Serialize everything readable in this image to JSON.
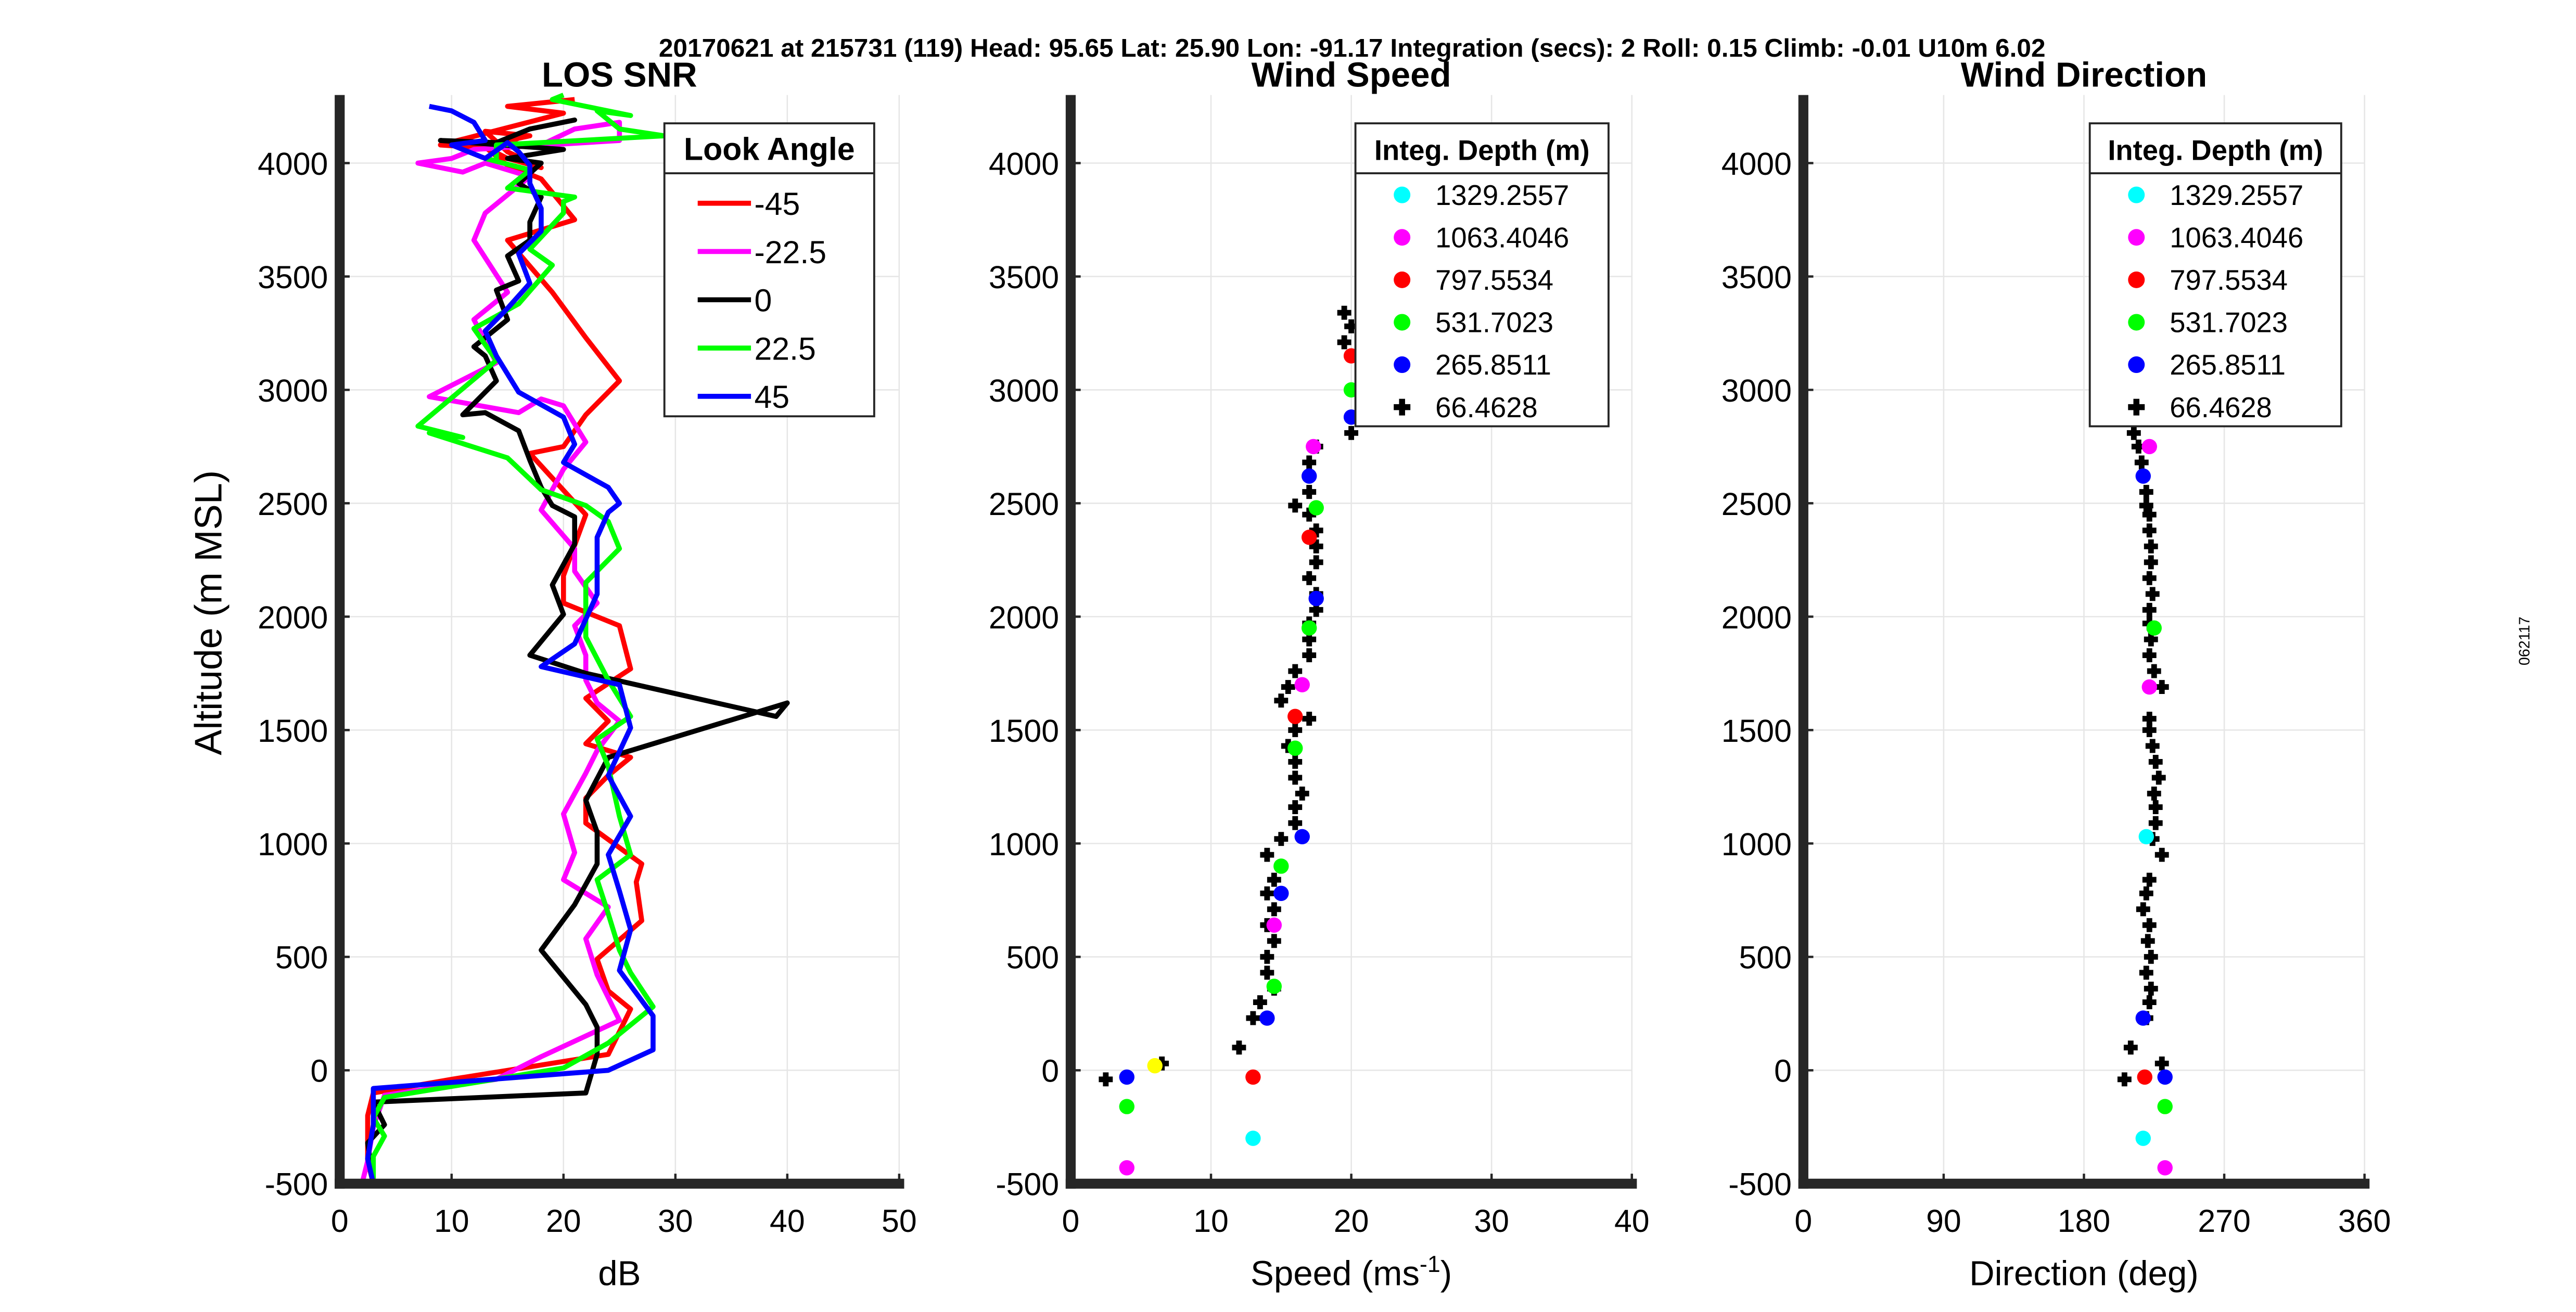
{
  "header": "20170621 at 215731 (119)  Head: 95.65  Lat: 25.90  Lon: -91.17  Integration (secs): 2  Roll: 0.15  Climb: -0.01  U10m 6.02",
  "side_label": "062117",
  "colors": {
    "red": "#ff0000",
    "magenta": "#ff00ff",
    "black": "#000000",
    "green": "#00ff00",
    "blue": "#0000ff",
    "cyan": "#00ffff",
    "yellow": "#ffff00",
    "grid": "#e6e6e6",
    "axis": "#262626"
  },
  "chart_data": [
    {
      "type": "line",
      "title": "LOS SNR",
      "xlabel": "dB",
      "ylabel": "Altitude (m MSL)",
      "xlim": [
        0,
        50
      ],
      "ylim": [
        -500,
        4300
      ],
      "xticks": [
        "0",
        "10",
        "20",
        "30",
        "40",
        "50"
      ],
      "yticks": [
        "-500",
        "0",
        "500",
        "1000",
        "1500",
        "2000",
        "2500",
        "3000",
        "3500",
        "4000"
      ],
      "legend_title": "Look Angle",
      "legend_position": "top-right",
      "grid": true,
      "series": [
        {
          "name": "-45",
          "color": "#ff0000",
          "x": [
            3,
            2.5,
            2.5,
            3,
            10,
            24,
            26,
            24,
            23,
            27,
            26.5,
            27,
            22,
            22,
            24,
            26,
            22,
            24,
            22,
            26,
            25,
            20,
            20,
            22,
            17,
            20,
            22,
            25,
            22,
            19,
            15,
            21,
            18,
            15,
            13,
            15,
            18,
            15,
            13,
            17,
            16,
            15,
            12,
            9,
            20,
            15,
            21
          ],
          "y": [
            -500,
            -400,
            -200,
            -100,
            -40,
            70,
            270,
            350,
            490,
            660,
            830,
            910,
            1090,
            1200,
            1300,
            1380,
            1440,
            1540,
            1640,
            1770,
            1960,
            2060,
            2180,
            2450,
            2720,
            2750,
            2890,
            3040,
            3230,
            3430,
            3660,
            3750,
            3930,
            3990,
            4070,
            4020,
            3980,
            4050,
            4140,
            4120,
            4110,
            4090,
            4070,
            4080,
            4220,
            4250,
            4280
          ]
        },
        {
          "name": "-22.5",
          "color": "#ff00ff",
          "x": [
            2,
            2.5,
            3,
            4,
            14,
            18,
            25,
            23,
            22,
            24,
            20,
            21,
            20,
            22,
            23,
            25,
            23,
            22,
            22,
            21,
            23,
            21,
            21,
            18,
            20,
            22,
            21,
            20,
            18,
            16,
            8,
            14,
            12,
            15,
            12,
            13,
            17,
            13,
            11,
            7,
            10,
            12,
            25,
            25,
            21,
            18
          ],
          "y": [
            -500,
            -400,
            -250,
            -110,
            -40,
            60,
            220,
            420,
            580,
            720,
            840,
            960,
            1130,
            1310,
            1410,
            1540,
            1620,
            1720,
            1830,
            1960,
            2060,
            2200,
            2300,
            2470,
            2650,
            2770,
            2850,
            2930,
            2960,
            2900,
            2970,
            3120,
            3310,
            3430,
            3660,
            3780,
            3940,
            4000,
            3960,
            4000,
            4020,
            4060,
            4100,
            4180,
            4150,
            4080
          ]
        },
        {
          "name": "0",
          "color": "#000000",
          "x": [
            3,
            2.5,
            4,
            3,
            22,
            23,
            23,
            22,
            18,
            21,
            23,
            23,
            22,
            24,
            40,
            39,
            22,
            17,
            20,
            19,
            21,
            21,
            19,
            18,
            17,
            16,
            13,
            11,
            14,
            13,
            12,
            15,
            14,
            16,
            15,
            17,
            17,
            18,
            16,
            18,
            15,
            20,
            9,
            14,
            17,
            21,
            19
          ],
          "y": [
            -500,
            -320,
            -240,
            -140,
            -100,
            70,
            190,
            290,
            530,
            730,
            910,
            1050,
            1190,
            1380,
            1620,
            1560,
            1750,
            1830,
            2010,
            2140,
            2320,
            2440,
            2490,
            2570,
            2690,
            2820,
            2900,
            2890,
            3040,
            3150,
            3190,
            3310,
            3440,
            3480,
            3590,
            3660,
            3740,
            3850,
            3910,
            4000,
            4020,
            4060,
            4100,
            4090,
            4150,
            4190,
            4170
          ]
        },
        {
          "name": "22.5",
          "color": "#00ff00",
          "x": [
            3,
            3,
            4,
            3,
            4,
            20,
            24,
            28,
            26,
            25,
            24,
            23,
            26,
            25,
            24,
            23,
            26,
            24,
            22,
            22,
            25,
            24,
            22,
            18,
            15,
            8,
            11,
            7,
            14,
            12,
            16,
            19,
            17,
            20,
            20,
            21,
            15,
            17,
            13,
            14,
            14,
            18,
            29,
            25,
            23,
            26,
            22,
            19,
            20
          ],
          "y": [
            -500,
            -380,
            -290,
            -210,
            -120,
            10,
            120,
            280,
            430,
            530,
            690,
            840,
            950,
            1120,
            1340,
            1460,
            1560,
            1720,
            1910,
            2150,
            2300,
            2420,
            2490,
            2560,
            2700,
            2810,
            2790,
            2840,
            3130,
            3270,
            3380,
            3550,
            3620,
            3780,
            3830,
            3850,
            3890,
            3970,
            4020,
            4010,
            4080,
            4090,
            4120,
            4150,
            4230,
            4210,
            4250,
            4280,
            4300
          ]
        },
        {
          "name": "45",
          "color": "#0000ff",
          "x": [
            3,
            2.5,
            3,
            3,
            3,
            24,
            28,
            28,
            25,
            26,
            25,
            24,
            26,
            24,
            26,
            25,
            18,
            21,
            23,
            23,
            23,
            24,
            25,
            24,
            20,
            21,
            20,
            16,
            14,
            13,
            15,
            17,
            16,
            18,
            18,
            17,
            17,
            16,
            15,
            13,
            13,
            10,
            13,
            12,
            10,
            8
          ],
          "y": [
            -500,
            -390,
            -240,
            -160,
            -80,
            0,
            90,
            240,
            440,
            620,
            790,
            950,
            1120,
            1300,
            1510,
            1700,
            1780,
            1880,
            2100,
            2270,
            2350,
            2460,
            2500,
            2570,
            2680,
            2760,
            2880,
            2990,
            3150,
            3260,
            3360,
            3470,
            3600,
            3700,
            3800,
            3910,
            3990,
            4050,
            4090,
            4020,
            4020,
            4080,
            4100,
            4180,
            4230,
            4250
          ]
        }
      ]
    },
    {
      "type": "scatter",
      "title": "Wind Speed",
      "xlabel": "Speed (ms",
      "xlabel_sup": "-1",
      "xlabel_tail": ")",
      "xlim": [
        0,
        40
      ],
      "ylim": [
        -500,
        4300
      ],
      "xticks": [
        "0",
        "10",
        "20",
        "30",
        "40"
      ],
      "yticks": [
        "-500",
        "0",
        "500",
        "1000",
        "1500",
        "2000",
        "2500",
        "3000",
        "3500",
        "4000"
      ],
      "legend_title": "Integ. Depth (m)",
      "legend_position": "top-right",
      "grid": true,
      "legend": [
        {
          "label": "1329.2557",
          "color": "#00ffff",
          "marker": "circle"
        },
        {
          "label": "1063.4046",
          "color": "#ff00ff",
          "marker": "circle"
        },
        {
          "label": "797.5534",
          "color": "#ff0000",
          "marker": "circle"
        },
        {
          "label": "531.7023",
          "color": "#00ff00",
          "marker": "circle"
        },
        {
          "label": "265.8511",
          "color": "#0000ff",
          "marker": "circle"
        },
        {
          "label": "66.4628",
          "color": "#000000",
          "marker": "plus"
        }
      ],
      "points": [
        {
          "x": 13,
          "y": -300,
          "c": "#00ffff"
        },
        {
          "x": 4,
          "y": -430,
          "c": "#ff00ff"
        },
        {
          "x": 13,
          "y": -30,
          "c": "#ff0000"
        },
        {
          "x": 4,
          "y": -160,
          "c": "#00ff00"
        },
        {
          "x": 4,
          "y": -30,
          "c": "#0000ff"
        },
        {
          "x": 6,
          "y": 20,
          "c": "#ffff00"
        },
        {
          "x": 14,
          "y": 230,
          "c": "#0000ff"
        },
        {
          "x": 14.5,
          "y": 370,
          "c": "#00ff00"
        },
        {
          "x": 14.5,
          "y": 640,
          "c": "#ff00ff"
        },
        {
          "x": 15,
          "y": 780,
          "c": "#0000ff"
        },
        {
          "x": 15,
          "y": 900,
          "c": "#00ff00"
        },
        {
          "x": 16.5,
          "y": 1030,
          "c": "#0000ff"
        },
        {
          "x": 16,
          "y": 1420,
          "c": "#00ff00"
        },
        {
          "x": 16,
          "y": 1560,
          "c": "#ff0000"
        },
        {
          "x": 16.5,
          "y": 1700,
          "c": "#ff00ff"
        },
        {
          "x": 17,
          "y": 1950,
          "c": "#00ff00"
        },
        {
          "x": 17.5,
          "y": 2080,
          "c": "#0000ff"
        },
        {
          "x": 17,
          "y": 2350,
          "c": "#ff0000"
        },
        {
          "x": 17.5,
          "y": 2480,
          "c": "#00ff00"
        },
        {
          "x": 17,
          "y": 2620,
          "c": "#0000ff"
        },
        {
          "x": 17.3,
          "y": 2750,
          "c": "#ff00ff"
        },
        {
          "x": 20,
          "y": 2880,
          "c": "#0000ff"
        },
        {
          "x": 20,
          "y": 3000,
          "c": "#00ff00"
        },
        {
          "x": 20,
          "y": 3150,
          "c": "#ff0000"
        }
      ],
      "black_points": [
        [
          2.5,
          -40
        ],
        [
          6.5,
          30
        ],
        [
          12,
          100
        ],
        [
          13,
          230
        ],
        [
          13.5,
          300
        ],
        [
          14.5,
          360
        ],
        [
          14,
          430
        ],
        [
          14,
          500
        ],
        [
          14.5,
          570
        ],
        [
          14,
          640
        ],
        [
          14.5,
          710
        ],
        [
          14,
          780
        ],
        [
          14.5,
          840
        ],
        [
          14,
          950
        ],
        [
          15,
          1020
        ],
        [
          16,
          1090
        ],
        [
          16,
          1160
        ],
        [
          16.5,
          1220
        ],
        [
          16,
          1290
        ],
        [
          16,
          1360
        ],
        [
          15.5,
          1430
        ],
        [
          16,
          1500
        ],
        [
          17,
          1550
        ],
        [
          15,
          1630
        ],
        [
          15.5,
          1690
        ],
        [
          16,
          1760
        ],
        [
          17,
          1830
        ],
        [
          17,
          1900
        ],
        [
          17,
          1970
        ],
        [
          17.5,
          2030
        ],
        [
          17.5,
          2100
        ],
        [
          17,
          2170
        ],
        [
          17.5,
          2240
        ],
        [
          17.5,
          2310
        ],
        [
          17.5,
          2380
        ],
        [
          17,
          2450
        ],
        [
          16,
          2490
        ],
        [
          17,
          2550
        ],
        [
          17,
          2620
        ],
        [
          17,
          2680
        ],
        [
          17.5,
          2750
        ],
        [
          20,
          2810
        ],
        [
          20,
          2880
        ],
        [
          19.5,
          3210
        ],
        [
          20,
          3280
        ],
        [
          19.5,
          3340
        ]
      ]
    },
    {
      "type": "scatter",
      "title": "Wind Direction",
      "xlabel": "Direction (deg)",
      "xlim": [
        0,
        360
      ],
      "ylim": [
        -500,
        4300
      ],
      "xticks": [
        "0",
        "90",
        "180",
        "270",
        "360"
      ],
      "yticks": [
        "-500",
        "0",
        "500",
        "1000",
        "1500",
        "2000",
        "2500",
        "3000",
        "3500",
        "4000"
      ],
      "legend_title": "Integ. Depth (m)",
      "legend_position": "top-right",
      "grid": true,
      "legend": [
        {
          "label": "1329.2557",
          "color": "#00ffff",
          "marker": "circle"
        },
        {
          "label": "1063.4046",
          "color": "#ff00ff",
          "marker": "circle"
        },
        {
          "label": "797.5534",
          "color": "#ff0000",
          "marker": "circle"
        },
        {
          "label": "531.7023",
          "color": "#00ff00",
          "marker": "circle"
        },
        {
          "label": "265.8511",
          "color": "#0000ff",
          "marker": "circle"
        },
        {
          "label": "66.4628",
          "color": "#000000",
          "marker": "plus"
        }
      ],
      "points": [
        {
          "x": 218,
          "y": -300,
          "c": "#00ffff"
        },
        {
          "x": 232,
          "y": -430,
          "c": "#ff00ff"
        },
        {
          "x": 219,
          "y": -30,
          "c": "#ff0000"
        },
        {
          "x": 232,
          "y": -160,
          "c": "#00ff00"
        },
        {
          "x": 232,
          "y": -30,
          "c": "#0000ff"
        },
        {
          "x": 218,
          "y": 230,
          "c": "#0000ff"
        },
        {
          "x": 220,
          "y": 1030,
          "c": "#00ffff"
        },
        {
          "x": 222,
          "y": 1690,
          "c": "#ff00ff"
        },
        {
          "x": 225,
          "y": 1950,
          "c": "#00ff00"
        },
        {
          "x": 218,
          "y": 2620,
          "c": "#0000ff"
        },
        {
          "x": 222,
          "y": 2750,
          "c": "#ff00ff"
        }
      ],
      "black_points": [
        [
          206,
          -40
        ],
        [
          230,
          30
        ],
        [
          210,
          100
        ],
        [
          220,
          230
        ],
        [
          222,
          300
        ],
        [
          223,
          360
        ],
        [
          220,
          430
        ],
        [
          223,
          500
        ],
        [
          221,
          570
        ],
        [
          222,
          640
        ],
        [
          218,
          710
        ],
        [
          220,
          780
        ],
        [
          222,
          840
        ],
        [
          230,
          950
        ],
        [
          224,
          1020
        ],
        [
          226,
          1090
        ],
        [
          226,
          1160
        ],
        [
          225,
          1220
        ],
        [
          228,
          1290
        ],
        [
          226,
          1360
        ],
        [
          224,
          1430
        ],
        [
          222,
          1500
        ],
        [
          222,
          1550
        ],
        [
          230,
          1690
        ],
        [
          225,
          1760
        ],
        [
          222,
          1830
        ],
        [
          223,
          1900
        ],
        [
          222,
          1970
        ],
        [
          222,
          2030
        ],
        [
          224,
          2100
        ],
        [
          222,
          2170
        ],
        [
          223,
          2240
        ],
        [
          223,
          2310
        ],
        [
          222,
          2380
        ],
        [
          222,
          2450
        ],
        [
          220,
          2490
        ],
        [
          220,
          2550
        ],
        [
          218,
          2620
        ],
        [
          217,
          2680
        ],
        [
          215,
          2750
        ],
        [
          212,
          2810
        ]
      ]
    }
  ]
}
